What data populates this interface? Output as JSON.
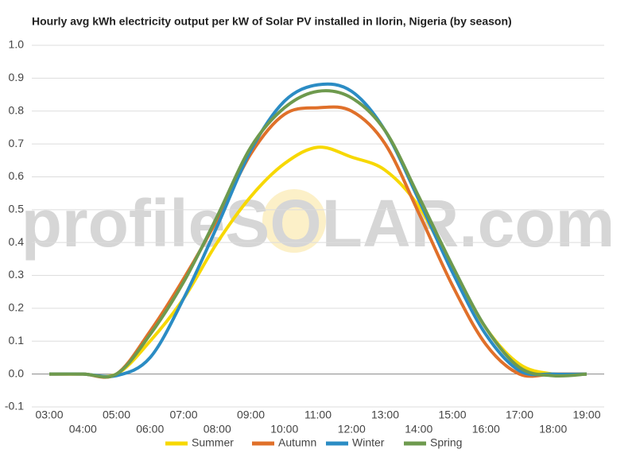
{
  "chart_data": {
    "type": "line",
    "title": "Hourly avg kWh electricity output per kW of Solar PV installed in Ilorin, Nigeria (by season)",
    "watermark": "profileSOLAR.com",
    "categories": [
      "03:00",
      "04:00",
      "05:00",
      "06:00",
      "07:00",
      "08:00",
      "09:00",
      "10:00",
      "11:00",
      "12:00",
      "13:00",
      "14:00",
      "15:00",
      "16:00",
      "17:00",
      "18:00",
      "19:00"
    ],
    "series": [
      {
        "name": "Summer",
        "color": "#f7d800",
        "values": [
          0,
          0,
          0,
          0.1,
          0.23,
          0.4,
          0.54,
          0.64,
          0.69,
          0.66,
          0.62,
          0.51,
          0.32,
          0.14,
          0.03,
          0,
          0
        ]
      },
      {
        "name": "Autumn",
        "color": "#e0702a",
        "values": [
          0,
          0,
          0,
          0.13,
          0.29,
          0.47,
          0.67,
          0.79,
          0.81,
          0.8,
          0.7,
          0.49,
          0.27,
          0.09,
          0,
          0,
          0
        ]
      },
      {
        "name": "Winter",
        "color": "#2b8cc4",
        "values": [
          0,
          0,
          -0.005,
          0.05,
          0.23,
          0.45,
          0.68,
          0.83,
          0.88,
          0.86,
          0.74,
          0.53,
          0.31,
          0.12,
          0.01,
          0,
          0
        ]
      },
      {
        "name": "Spring",
        "color": "#6e9a4e",
        "values": [
          0,
          0,
          0,
          0.12,
          0.28,
          0.48,
          0.69,
          0.81,
          0.86,
          0.84,
          0.74,
          0.54,
          0.33,
          0.14,
          0.02,
          -0.005,
          0
        ]
      }
    ],
    "ylim": [
      -0.1,
      1.0
    ],
    "yticks": [
      -0.1,
      {
        "value": 0,
        "label": "0.0"
      },
      0.1,
      0.2,
      0.3,
      0.4,
      0.5,
      0.6,
      0.7,
      0.8,
      0.9,
      {
        "value": 1,
        "label": "1.0"
      }
    ],
    "grid": true,
    "legend": "bottom"
  }
}
